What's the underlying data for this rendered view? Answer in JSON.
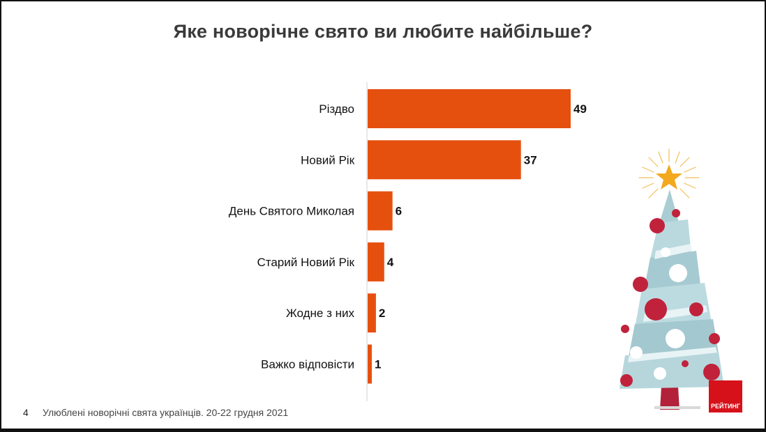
{
  "title": "Яке новорічне свято ви любите найбільше?",
  "chart_data": {
    "type": "bar",
    "orientation": "horizontal",
    "categories": [
      "Різдво",
      "Новий Рік",
      "День Святого Миколая",
      "Старий Новий Рік",
      "Жодне з них",
      "Важко відповісти"
    ],
    "values": [
      49,
      37,
      6,
      4,
      2,
      1
    ],
    "bar_color": "#e5500e",
    "xlim": [
      0,
      100
    ]
  },
  "footer": {
    "page_number": "4",
    "text": "Улюблені новорічні свята українців. 20-22 грудня 2021"
  },
  "logo": {
    "text": "РЕЙТИНГ",
    "color": "#d7111a"
  }
}
